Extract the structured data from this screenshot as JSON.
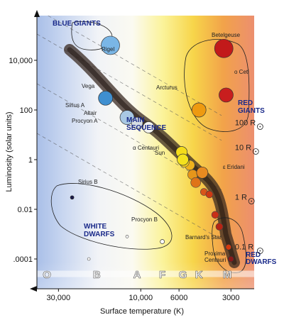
{
  "chart_data": {
    "type": "scatter",
    "xlabel": "Surface temperature (K)",
    "ylabel": "Luminosity (solar units)",
    "x_scale": "log",
    "x_reversed": true,
    "xlim": [
      40000,
      2200
    ],
    "ylim_log10": [
      -5.2,
      5.8
    ],
    "x_ticks": [
      {
        "value": 30000,
        "label": "30,000"
      },
      {
        "value": 10000,
        "label": "10,000"
      },
      {
        "value": 6000,
        "label": "6000"
      },
      {
        "value": 3000,
        "label": "3000"
      }
    ],
    "y_ticks": [
      {
        "value": 10000,
        "label": "10,000"
      },
      {
        "value": 100,
        "label": "100"
      },
      {
        "value": 1,
        "label": "1"
      },
      {
        "value": 0.01,
        "label": "0.01"
      },
      {
        "value": 0.0001,
        "label": ".0001"
      }
    ],
    "spectral_classes": [
      {
        "label": "O",
        "temp": 35000
      },
      {
        "label": "B",
        "temp": 18000
      },
      {
        "label": "A",
        "temp": 10500
      },
      {
        "label": "F",
        "temp": 7500
      },
      {
        "label": "G",
        "temp": 5700
      },
      {
        "label": "K",
        "temp": 4600
      },
      {
        "label": "M",
        "temp": 3150
      }
    ],
    "regions": [
      {
        "label": "BLUE GIANTS"
      },
      {
        "label": "MAIN SEQUENCE"
      },
      {
        "label": "RED GIANTS"
      },
      {
        "label": "WHITE DWARFS"
      },
      {
        "label": "RED DWARFS"
      }
    ],
    "radius_lines": [
      {
        "label": "100 R",
        "luminosity_at_label": 31.6
      },
      {
        "label": "10 R",
        "luminosity_at_label": 3.16
      },
      {
        "label": "1 R",
        "luminosity_at_label": 0.0316
      },
      {
        "label": "0.1 R",
        "luminosity_at_label": 0.000316
      }
    ],
    "named_stars": [
      {
        "name": "Betelgeuse",
        "temp": 3300,
        "luminosity": 30000,
        "color": "#c21a1a"
      },
      {
        "name": "Rigel",
        "temp": 15000,
        "luminosity": 40000,
        "color": "#7ab6e6"
      },
      {
        "name": "Vega",
        "temp": 16000,
        "luminosity": 300,
        "color": "#3f8fd0"
      },
      {
        "name": "Sirius A",
        "temp": 12000,
        "luminosity": 50,
        "color": "#a9c8e3"
      },
      {
        "name": "Altair",
        "temp": 10500,
        "luminosity": 30,
        "color": "#d6dde3"
      },
      {
        "name": "Procyon A",
        "temp": 9000,
        "luminosity": 20,
        "color": "#f3f3ee"
      },
      {
        "name": "Arcturus",
        "temp": 4600,
        "luminosity": 100,
        "color": "#ee9a10"
      },
      {
        "name": "o Ceti",
        "temp": 3200,
        "luminosity": 400,
        "color": "#c81e1e"
      },
      {
        "name": "α Centauri",
        "temp": 5800,
        "luminosity": 2,
        "color": "#f4dc1a"
      },
      {
        "name": "Sun",
        "temp": 5700,
        "luminosity": 1,
        "color": "#f4e21e"
      },
      {
        "name": "ε Eridani",
        "temp": 4400,
        "luminosity": 0.3,
        "color": "#e88a20"
      },
      {
        "name": "Sirius B",
        "temp": 25000,
        "luminosity": 0.03,
        "color": "#1a1a4a"
      },
      {
        "name": "Procyon B",
        "temp": 7500,
        "luminosity": 0.0005,
        "color": "#ffffff"
      },
      {
        "name": "Barnard's Star",
        "temp": 3100,
        "luminosity": 0.0003,
        "color": "#d23a10"
      },
      {
        "name": "Proxima Centauri",
        "temp": 3000,
        "luminosity": 0.0001,
        "color": "#8a1a1a"
      }
    ],
    "unnamed_stars": [
      {
        "temp": 5200,
        "luminosity": 0.6,
        "color": "#efb21c"
      },
      {
        "temp": 5000,
        "luminosity": 0.25,
        "color": "#e6961a"
      },
      {
        "temp": 4300,
        "luminosity": 0.05,
        "color": "#d8561a"
      },
      {
        "temp": 4000,
        "luminosity": 0.04,
        "color": "#cc3a14"
      },
      {
        "temp": 3700,
        "luminosity": 0.006,
        "color": "#c83018"
      },
      {
        "temp": 3500,
        "luminosity": 0.002,
        "color": "#b62414"
      },
      {
        "temp": 5600,
        "luminosity": 0.8,
        "color": "#f6d01c"
      },
      {
        "temp": 4800,
        "luminosity": 0.12,
        "color": "#df7418"
      },
      {
        "temp": 12000,
        "luminosity": 0.0008,
        "color": "#ffffff"
      },
      {
        "temp": 20000,
        "luminosity": 0.0001,
        "color": "#ffffff"
      }
    ]
  }
}
